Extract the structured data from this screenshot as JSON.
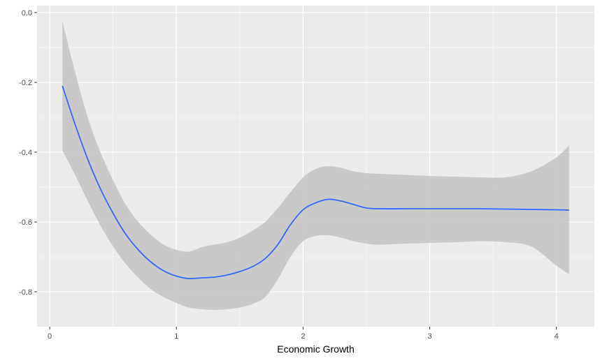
{
  "chart_data": {
    "type": "line",
    "title": "",
    "xlabel": "Economic Growth",
    "ylabel": "",
    "xlim": [
      -0.1,
      4.3
    ],
    "ylim": [
      -0.9,
      0.02
    ],
    "x_ticks": [
      0,
      1,
      2,
      3,
      4
    ],
    "x_tick_labels": [
      "0",
      "1",
      "2",
      "3",
      "4"
    ],
    "y_ticks": [
      0.0,
      -0.2,
      -0.4,
      -0.6,
      -0.8
    ],
    "y_tick_labels": [
      "0.0",
      "-0.2",
      "-0.4",
      "-0.6",
      "-0.8"
    ],
    "grid": true,
    "colors": {
      "panel_background": "#ebebeb",
      "grid_major": "#ffffff",
      "ribbon": "#c3c3c3",
      "line": "#3366ff",
      "tick_text": "#4d4d4d",
      "axis_title": "#000000"
    },
    "series": [
      {
        "x": [
          0.1,
          0.2,
          0.3,
          0.4,
          0.5,
          0.6,
          0.7,
          0.8,
          0.9,
          1.0,
          1.1,
          1.2,
          1.3,
          1.4,
          1.5,
          1.6,
          1.7,
          1.8,
          1.9,
          2.0,
          2.1,
          2.2,
          2.3,
          2.4,
          2.5,
          2.6,
          2.8,
          3.0,
          3.2,
          3.4,
          3.6,
          3.8,
          4.0,
          4.1
        ],
        "y": [
          -0.21,
          -0.32,
          -0.42,
          -0.505,
          -0.575,
          -0.635,
          -0.68,
          -0.715,
          -0.74,
          -0.755,
          -0.762,
          -0.76,
          -0.758,
          -0.752,
          -0.742,
          -0.728,
          -0.705,
          -0.665,
          -0.608,
          -0.565,
          -0.545,
          -0.535,
          -0.54,
          -0.55,
          -0.56,
          -0.562,
          -0.562,
          -0.562,
          -0.562,
          -0.562,
          -0.563,
          -0.564,
          -0.565,
          -0.566
        ],
        "lower": [
          -0.395,
          -0.465,
          -0.54,
          -0.61,
          -0.67,
          -0.72,
          -0.76,
          -0.793,
          -0.815,
          -0.832,
          -0.845,
          -0.85,
          -0.852,
          -0.85,
          -0.845,
          -0.835,
          -0.815,
          -0.765,
          -0.7,
          -0.655,
          -0.64,
          -0.638,
          -0.645,
          -0.655,
          -0.662,
          -0.665,
          -0.662,
          -0.66,
          -0.658,
          -0.655,
          -0.658,
          -0.67,
          -0.725,
          -0.75
        ],
        "upper": [
          -0.025,
          -0.17,
          -0.3,
          -0.4,
          -0.48,
          -0.55,
          -0.6,
          -0.637,
          -0.665,
          -0.68,
          -0.685,
          -0.672,
          -0.665,
          -0.658,
          -0.645,
          -0.625,
          -0.6,
          -0.56,
          -0.515,
          -0.472,
          -0.448,
          -0.44,
          -0.445,
          -0.455,
          -0.46,
          -0.462,
          -0.465,
          -0.468,
          -0.47,
          -0.472,
          -0.472,
          -0.455,
          -0.415,
          -0.38
        ]
      }
    ]
  }
}
